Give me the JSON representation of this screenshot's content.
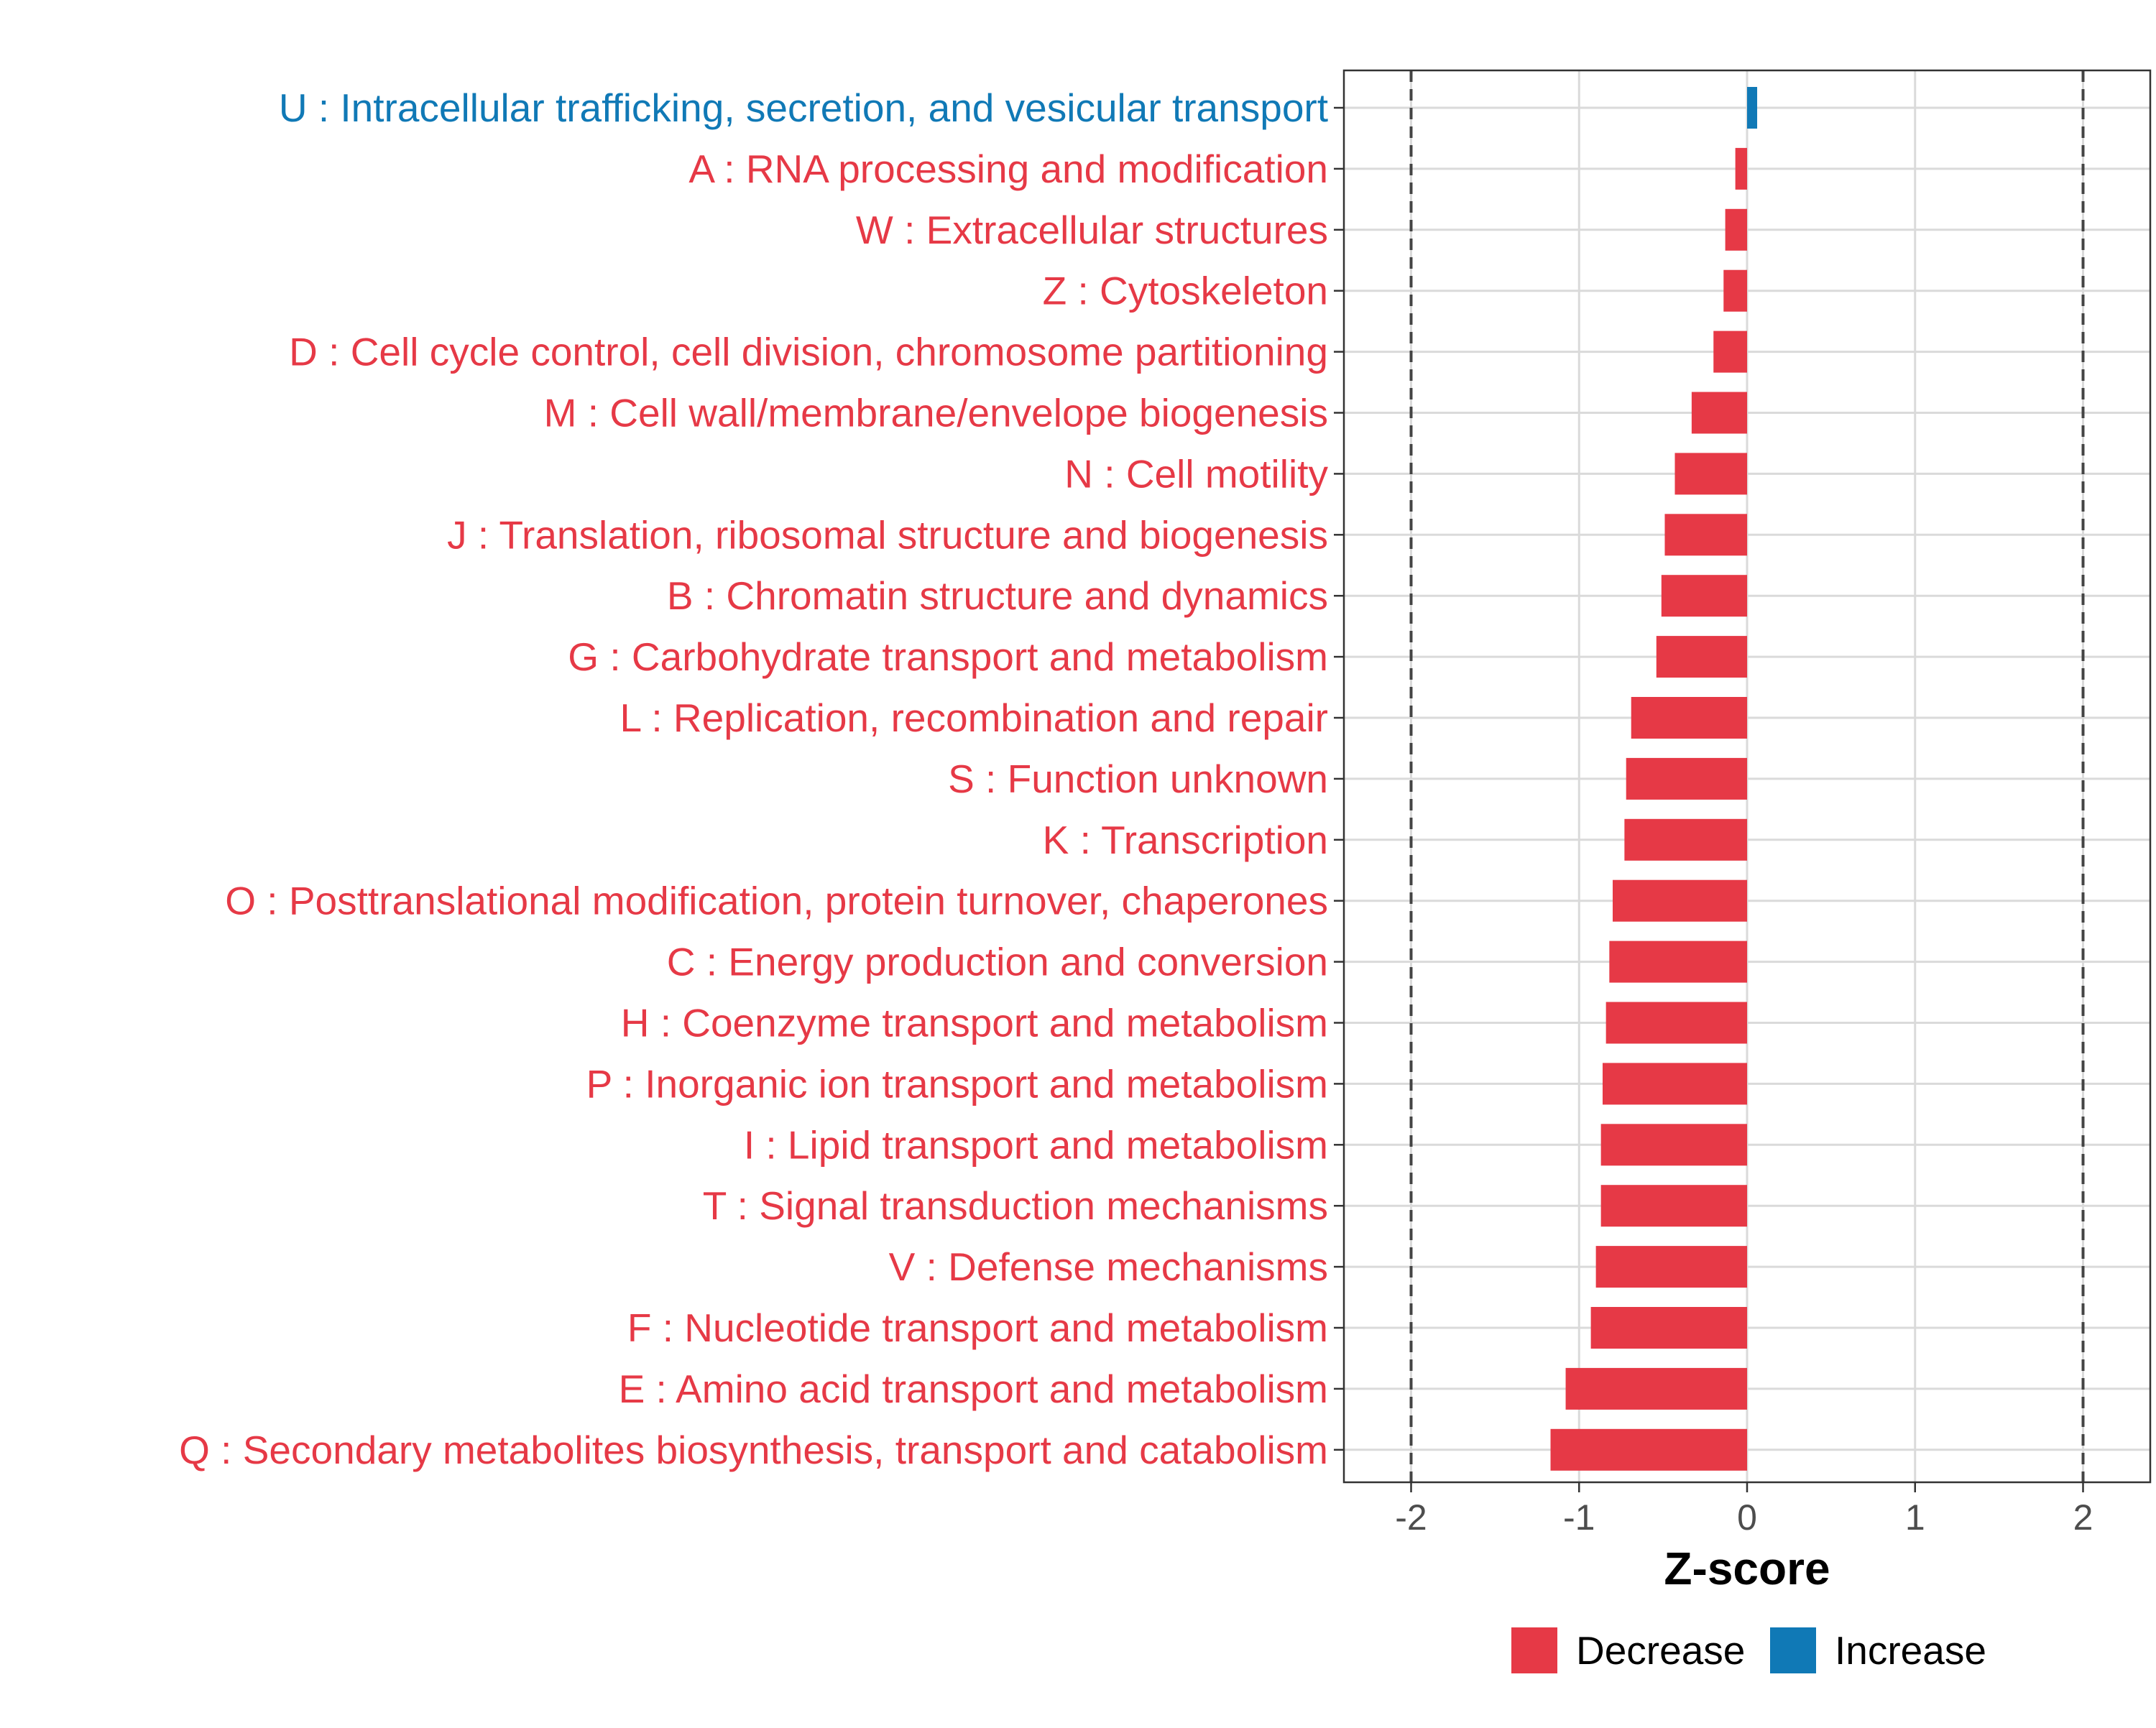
{
  "chart_data": {
    "type": "bar",
    "orientation": "horizontal",
    "title": "",
    "xlabel": "Z-score",
    "ylabel": "",
    "xlim": [
      -2.4,
      2.4
    ],
    "x_ticks": [
      -2,
      -1,
      0,
      1,
      2
    ],
    "x_tick_labels": [
      "-2",
      "-1",
      "0",
      "1",
      "2"
    ],
    "reference_lines": [
      -2,
      2
    ],
    "grid": true,
    "legend_position": "bottom",
    "colors": {
      "Decrease": "#E63946",
      "Increase": "#1079B6"
    },
    "legend": [
      {
        "label": "Decrease",
        "color": "#E63946"
      },
      {
        "label": "Increase",
        "color": "#1079B6"
      }
    ],
    "categories": [
      {
        "label": "U : Intracellular trafficking, secretion, and vesicular transport",
        "value": 0.06,
        "direction": "Increase"
      },
      {
        "label": "A : RNA processing and modification",
        "value": -0.07,
        "direction": "Decrease"
      },
      {
        "label": "W : Extracellular structures",
        "value": -0.13,
        "direction": "Decrease"
      },
      {
        "label": "Z : Cytoskeleton",
        "value": -0.14,
        "direction": "Decrease"
      },
      {
        "label": "D : Cell cycle control, cell division, chromosome partitioning",
        "value": -0.2,
        "direction": "Decrease"
      },
      {
        "label": "M : Cell wall/membrane/envelope biogenesis",
        "value": -0.33,
        "direction": "Decrease"
      },
      {
        "label": "N : Cell motility",
        "value": -0.43,
        "direction": "Decrease"
      },
      {
        "label": "J : Translation, ribosomal structure and biogenesis",
        "value": -0.49,
        "direction": "Decrease"
      },
      {
        "label": "B : Chromatin structure and dynamics",
        "value": -0.51,
        "direction": "Decrease"
      },
      {
        "label": "G : Carbohydrate transport and metabolism",
        "value": -0.54,
        "direction": "Decrease"
      },
      {
        "label": "L : Replication, recombination and repair",
        "value": -0.69,
        "direction": "Decrease"
      },
      {
        "label": "S : Function unknown",
        "value": -0.72,
        "direction": "Decrease"
      },
      {
        "label": "K : Transcription",
        "value": -0.73,
        "direction": "Decrease"
      },
      {
        "label": "O : Posttranslational modification, protein turnover, chaperones",
        "value": -0.8,
        "direction": "Decrease"
      },
      {
        "label": "C : Energy production and conversion",
        "value": -0.82,
        "direction": "Decrease"
      },
      {
        "label": "H : Coenzyme transport and metabolism",
        "value": -0.84,
        "direction": "Decrease"
      },
      {
        "label": "P : Inorganic ion transport and metabolism",
        "value": -0.86,
        "direction": "Decrease"
      },
      {
        "label": "I : Lipid transport and metabolism",
        "value": -0.87,
        "direction": "Decrease"
      },
      {
        "label": "T : Signal transduction mechanisms",
        "value": -0.87,
        "direction": "Decrease"
      },
      {
        "label": "V : Defense mechanisms",
        "value": -0.9,
        "direction": "Decrease"
      },
      {
        "label": "F : Nucleotide transport and metabolism",
        "value": -0.93,
        "direction": "Decrease"
      },
      {
        "label": "E : Amino acid transport and metabolism",
        "value": -1.08,
        "direction": "Decrease"
      },
      {
        "label": "Q : Secondary metabolites biosynthesis, transport and catabolism",
        "value": -1.17,
        "direction": "Decrease"
      }
    ]
  }
}
